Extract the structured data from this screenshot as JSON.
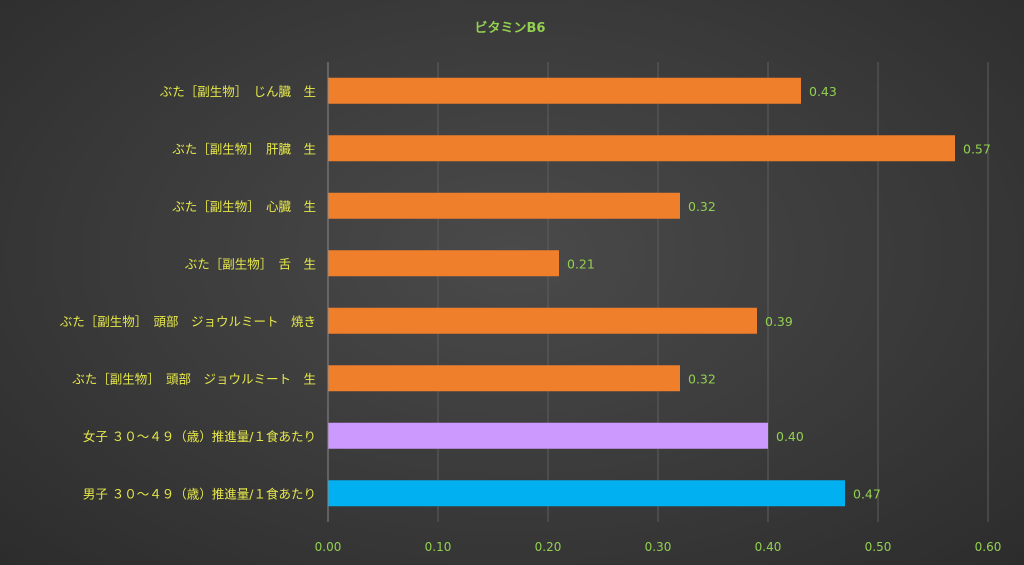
{
  "chart_data": {
    "type": "bar",
    "orientation": "horizontal",
    "title": "ビタミンB6",
    "categories": [
      "ぶた［副生物］　じん臓　生",
      "ぶた［副生物］　肝臓　生",
      "ぶた［副生物］　心臓　生",
      "ぶた［副生物］　舌　生",
      "ぶた［副生物］　頭部　ジョウルミート　焼き",
      "ぶた［副生物］　頭部　ジョウルミート　生",
      "女子 ３０～４９（歳）推進量/１食あたり",
      "男子 ３０～４９（歳）推進量/１食あたり"
    ],
    "values": [
      0.43,
      0.57,
      0.32,
      0.21,
      0.39,
      0.32,
      0.4,
      0.47
    ],
    "value_labels": [
      "0.43",
      "0.57",
      "0.32",
      "0.21",
      "0.39",
      "0.32",
      "0.40",
      "0.47"
    ],
    "colors": [
      "#f07f2c",
      "#f07f2c",
      "#f07f2c",
      "#f07f2c",
      "#f07f2c",
      "#f07f2c",
      "#cc99ff",
      "#00b0f0"
    ],
    "xlim": [
      0,
      0.6
    ],
    "xticks": [
      0,
      0.1,
      0.2,
      0.3,
      0.4,
      0.5,
      0.6
    ],
    "xtick_labels": [
      "0.00",
      "0.10",
      "0.20",
      "0.30",
      "0.40",
      "0.50",
      "0.60"
    ],
    "grid": true,
    "legend": false
  }
}
